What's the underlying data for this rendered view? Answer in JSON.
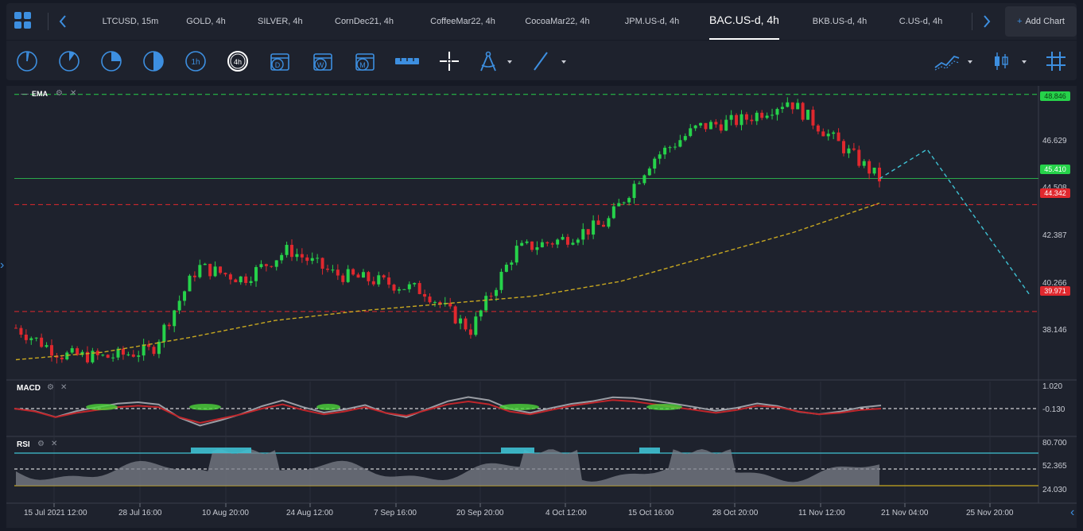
{
  "tabs": [
    {
      "label": "LTCUSD, 15m"
    },
    {
      "label": "GOLD, 4h"
    },
    {
      "label": "SILVER, 4h"
    },
    {
      "label": "CornDec21, 4h"
    },
    {
      "label": "CoffeeMar22, 4h"
    },
    {
      "label": "CocoaMar22, 4h"
    },
    {
      "label": "JPM.US-d, 4h"
    },
    {
      "label": "BAC.US-d, 4h"
    },
    {
      "label": "BKB.US-d, 4h"
    },
    {
      "label": "C.US-d, 4h"
    }
  ],
  "active_tab": "BAC.US-d, 4h",
  "add_chart_label": "Add Chart",
  "toolbar": {
    "timeframes": [
      "1m",
      "5m",
      "15m",
      "30m",
      "1h",
      "4h",
      "D",
      "W",
      "M"
    ],
    "active_timeframe": "4h"
  },
  "indicators": {
    "ema": "EMA",
    "macd": "MACD",
    "rsi": "RSI"
  },
  "price_axis": [
    "48.846",
    "46.629",
    "45.410",
    "44.508",
    "44.342",
    "42.387",
    "40.266",
    "39.971",
    "38.146"
  ],
  "price_tags": {
    "top_green": "48.846",
    "current": "45.410",
    "red_upper": "44.342",
    "red_lower": "39.971"
  },
  "macd_axis": [
    "1.020",
    "-0.130"
  ],
  "rsi_axis": [
    "80.700",
    "52.365",
    "24.030"
  ],
  "time_axis": [
    "15 Jul 2021 12:00",
    "28 Jul 16:00",
    "10 Aug 20:00",
    "24 Aug 12:00",
    "7 Sep 16:00",
    "20 Sep 20:00",
    "4 Oct 12:00",
    "15 Oct 16:00",
    "28 Oct 20:00",
    "11 Nov 12:00",
    "21 Nov 04:00",
    "25 Nov 20:00"
  ],
  "colors": {
    "background": "#1e222d",
    "up_candle": "#26d24a",
    "down_candle": "#e0282e",
    "ema": "#c8a820",
    "accent": "#3d8fe0",
    "projection": "#3ec1d3",
    "rsi_fill": "#7b7f88",
    "rsi_overbought": "#3ec1d3"
  },
  "chart_data": {
    "type": "candlestick",
    "symbol": "BAC.US-d, 4h",
    "ylim": [
      37.3,
      49.0
    ],
    "close_path": [
      {
        "x": "15 Jul 2021 12:00",
        "y": 39.3
      },
      {
        "x": "20 Jul",
        "y": 38.2
      },
      {
        "x": "28 Jul 16:00",
        "y": 38.1
      },
      {
        "x": "3 Aug",
        "y": 38.4
      },
      {
        "x": "10 Aug 20:00",
        "y": 41.8
      },
      {
        "x": "17 Aug",
        "y": 41.3
      },
      {
        "x": "24 Aug 12:00",
        "y": 42.5
      },
      {
        "x": "31 Aug",
        "y": 41.5
      },
      {
        "x": "7 Sep 16:00",
        "y": 41.2
      },
      {
        "x": "15 Sep",
        "y": 40.8
      },
      {
        "x": "20 Sep 20:00",
        "y": 39.2
      },
      {
        "x": "27 Sep",
        "y": 42.5
      },
      {
        "x": "4 Oct 12:00",
        "y": 42.9
      },
      {
        "x": "11 Oct",
        "y": 43.6
      },
      {
        "x": "15 Oct 16:00",
        "y": 46.2
      },
      {
        "x": "22 Oct",
        "y": 47.5
      },
      {
        "x": "28 Oct 20:00",
        "y": 47.8
      },
      {
        "x": "4 Nov",
        "y": 48.6
      },
      {
        "x": "11 Nov 12:00",
        "y": 47.0
      },
      {
        "x": "17 Nov",
        "y": 45.4
      }
    ],
    "ema_path": [
      38.0,
      38.3,
      38.9,
      39.6,
      40.0,
      40.3,
      40.6,
      41.2,
      42.2,
      43.2,
      44.4
    ],
    "horizontal_levels": [
      48.846,
      45.41,
      44.342,
      39.971
    ],
    "projection": [
      {
        "x": "17 Nov",
        "y": 45.4
      },
      {
        "x": "21 Nov",
        "y": 46.6
      },
      {
        "x": "27 Nov",
        "y": 40.6
      }
    ]
  }
}
